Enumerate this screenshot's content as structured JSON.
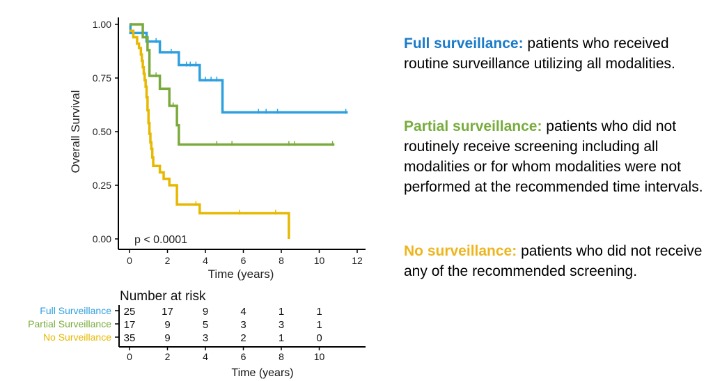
{
  "chart_data": {
    "type": "line",
    "subtype": "kaplan-meier step",
    "xlabel": "Time (years)",
    "ylabel": "Overall Survival",
    "xlim": [
      0,
      12
    ],
    "ylim": [
      0,
      1
    ],
    "xticks": [
      "0",
      "2",
      "4",
      "6",
      "8",
      "10",
      "12"
    ],
    "yticks": [
      "0.00",
      "0.25",
      "0.50",
      "0.75",
      "1.00"
    ],
    "annotation": "p < 0.0001",
    "series": [
      {
        "name": "Full Surveillance",
        "color": "#2E9FDF",
        "steps": [
          [
            0,
            1.0
          ],
          [
            0.05,
            0.96
          ],
          [
            0.9,
            0.92
          ],
          [
            1.6,
            0.87
          ],
          [
            2.6,
            0.81
          ],
          [
            3.7,
            0.74
          ],
          [
            4.9,
            0.59
          ]
        ],
        "end": 11.5,
        "censored": [
          1.4,
          2.2,
          3.0,
          3.2,
          3.5,
          4.0,
          4.3,
          4.6,
          6.8,
          7.2,
          7.8,
          11.4
        ]
      },
      {
        "name": "Partial Surveillance",
        "color": "#7BAA3C",
        "steps": [
          [
            0,
            1.0
          ],
          [
            0.7,
            0.94
          ],
          [
            0.95,
            0.88
          ],
          [
            1.05,
            0.76
          ],
          [
            1.6,
            0.7
          ],
          [
            2.1,
            0.62
          ],
          [
            2.5,
            0.53
          ],
          [
            2.6,
            0.44
          ]
        ],
        "end": 10.8,
        "censored": [
          1.4,
          2.3,
          4.6,
          5.4,
          8.4,
          8.7,
          10.7
        ]
      },
      {
        "name": "No Surveillance",
        "color": "#E7B800",
        "steps": [
          [
            0,
            0.97
          ],
          [
            0.2,
            0.94
          ],
          [
            0.4,
            0.91
          ],
          [
            0.5,
            0.89
          ],
          [
            0.6,
            0.86
          ],
          [
            0.65,
            0.83
          ],
          [
            0.7,
            0.8
          ],
          [
            0.75,
            0.77
          ],
          [
            0.8,
            0.74
          ],
          [
            0.85,
            0.71
          ],
          [
            0.9,
            0.66
          ],
          [
            0.95,
            0.6
          ],
          [
            1.0,
            0.54
          ],
          [
            1.05,
            0.49
          ],
          [
            1.1,
            0.45
          ],
          [
            1.15,
            0.42
          ],
          [
            1.2,
            0.38
          ],
          [
            1.25,
            0.34
          ],
          [
            1.6,
            0.31
          ],
          [
            1.8,
            0.28
          ],
          [
            2.1,
            0.25
          ],
          [
            2.5,
            0.16
          ],
          [
            3.7,
            0.12
          ],
          [
            8.4,
            0.0
          ]
        ],
        "end": 8.4,
        "censored": [
          3.5,
          5.8,
          7.7
        ]
      }
    ],
    "risk_table": {
      "title": "Number at risk",
      "xlabel": "Time (years)",
      "times": [
        "0",
        "2",
        "4",
        "6",
        "8",
        "10"
      ],
      "rows": [
        {
          "name": "Full Surveillance",
          "color": "#2E9FDF",
          "values": [
            "25",
            "17",
            "9",
            "4",
            "1",
            "1"
          ]
        },
        {
          "name": "Partial Surveillance",
          "color": "#7BAA3C",
          "values": [
            "17",
            "9",
            "5",
            "3",
            "3",
            "1"
          ]
        },
        {
          "name": "No Surveillance",
          "color": "#E7B800",
          "values": [
            "35",
            "9",
            "3",
            "2",
            "1",
            "0"
          ]
        }
      ]
    }
  },
  "descriptions": [
    {
      "title": "Full surveillance:",
      "color": "#1A7BC9",
      "text": " patients who received routine surveillance utilizing all modalities."
    },
    {
      "title": "Partial surveillance:",
      "color": "#78AC3E",
      "text": " patients who did not routinely receive screening including all modalities or for whom modalities were not performed at the recommended time intervals."
    },
    {
      "title": "No surveillance:",
      "color": "#EDB51E",
      "text": " patients who did not receive any of the recommended screening."
    }
  ]
}
